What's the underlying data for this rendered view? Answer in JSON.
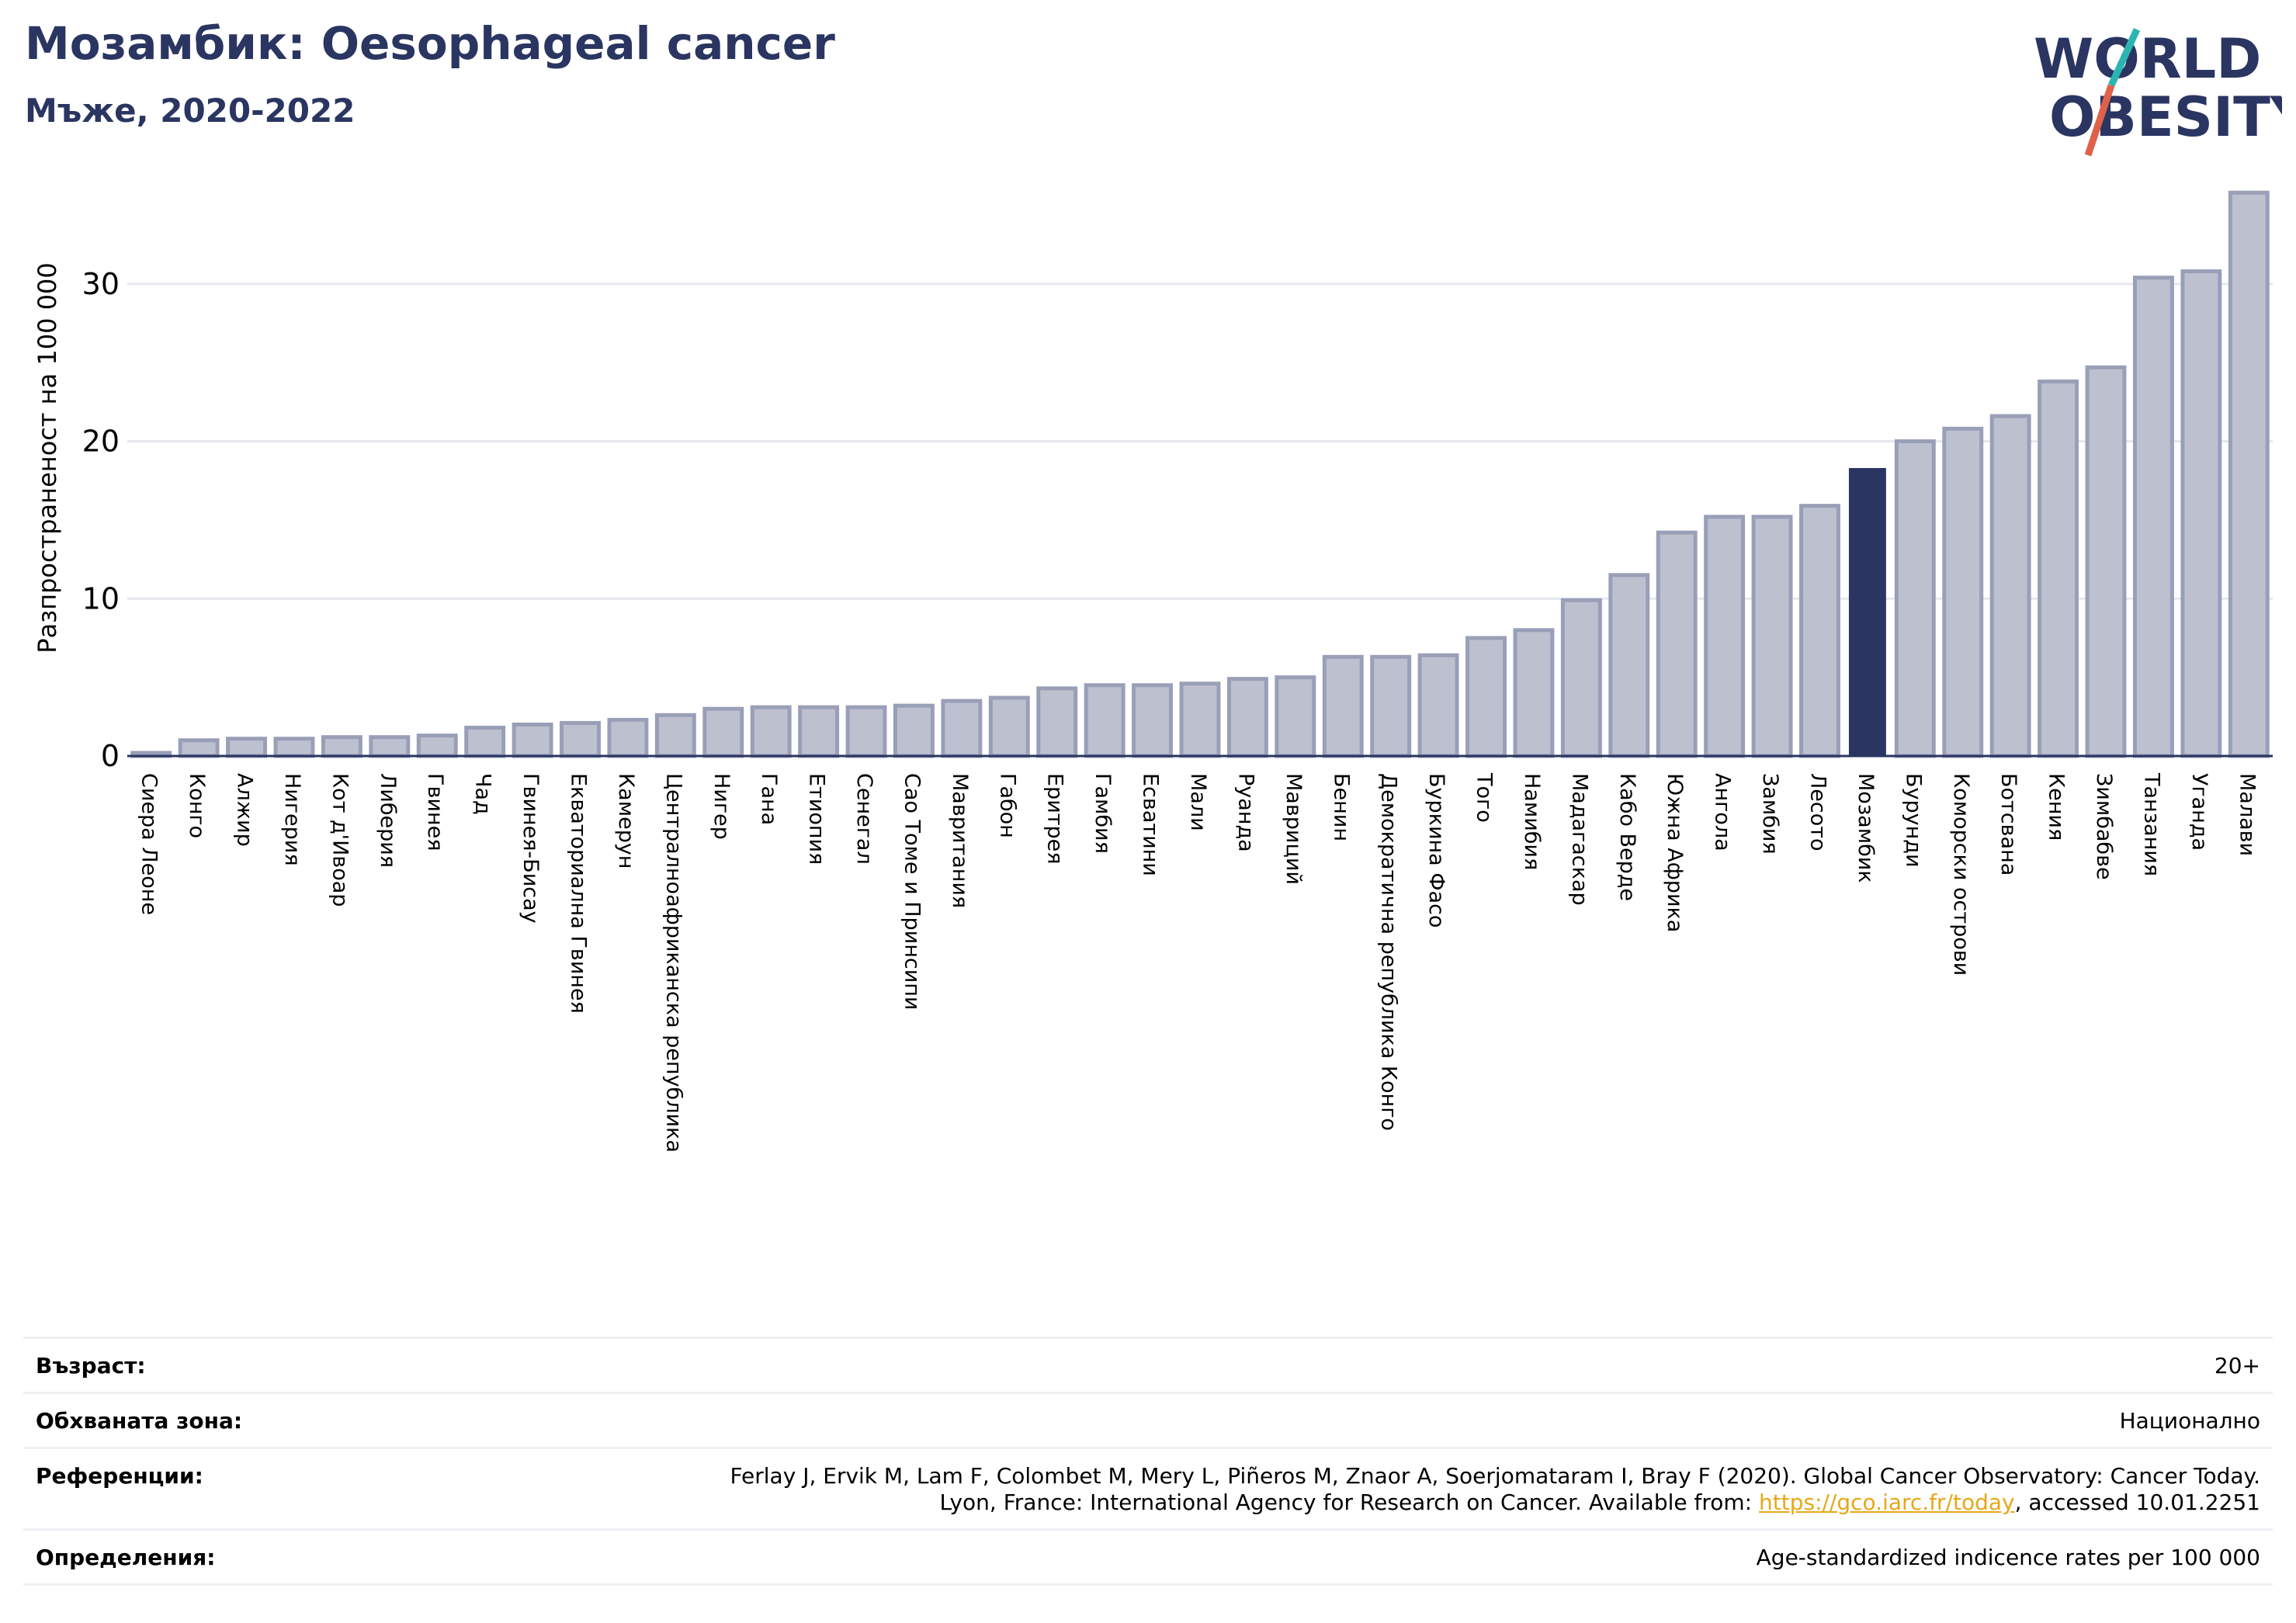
{
  "header": {
    "title": "Мозамбик: Oesophageal cancer",
    "subtitle": "Мъже, 2020-2022"
  },
  "logo": {
    "line1": "WORLD",
    "line2": "OBESITY",
    "colors": {
      "text": "#2a3561",
      "slash_teal": "#2bb5b0",
      "slash_red": "#e0614a"
    }
  },
  "chart_data": {
    "type": "bar",
    "ylabel": "Разпространеност  на 100 000",
    "ylim": [
      0,
      36.5
    ],
    "yticks": [
      0,
      10,
      20,
      30
    ],
    "grid": true,
    "highlight": "Мозамбик",
    "colors": {
      "bar": "#bcc0cf",
      "bar_border": "#9a9fb8",
      "highlight": "#2a3561"
    },
    "categories": [
      "Сиера Леоне",
      "Конго",
      "Алжир",
      "Нигерия",
      "Кот д'Ивоар",
      "Либерия",
      "Гвинея",
      "Чад",
      "Гвинея-Бисау",
      "Екваториална Гвинея",
      "Камерун",
      "Централноафриканска република",
      "Нигер",
      "Гана",
      "Етиопия",
      "Сенегал",
      "Сао Томе и Принсипи",
      "Мавритания",
      "Габон",
      "Еритрея",
      "Гамбия",
      "Есватини",
      "Мали",
      "Руанда",
      "Мавриций",
      "Бенин",
      "Демократична република Конго",
      "Буркина Фасо",
      "Того",
      "Намибия",
      "Мадагаскар",
      "Кабо Верде",
      "Южна Африка",
      "Ангола",
      "Замбия",
      "Лесото",
      "Мозамбик",
      "Бурунди",
      "Коморски острови",
      "Ботсвана",
      "Кения",
      "Зимбабве",
      "Танзания",
      "Уганда",
      "Малави"
    ],
    "values": [
      0.2,
      1.0,
      1.1,
      1.1,
      1.2,
      1.2,
      1.3,
      1.8,
      2.0,
      2.1,
      2.3,
      2.6,
      3.0,
      3.1,
      3.1,
      3.1,
      3.2,
      3.5,
      3.7,
      4.3,
      4.5,
      4.5,
      4.6,
      4.9,
      5.0,
      6.3,
      6.3,
      6.4,
      7.5,
      8.0,
      9.9,
      11.5,
      14.2,
      15.2,
      15.2,
      15.9,
      18.3,
      20.0,
      20.8,
      21.6,
      23.8,
      24.7,
      30.4,
      30.8,
      35.8
    ]
  },
  "info": {
    "age_label": "Възраст:",
    "age_value": "20+",
    "area_label": "Обхваната зона:",
    "area_value": "Национално",
    "ref_label": "Референции:",
    "ref_line1": "Ferlay J, Ervik M, Lam F, Colombet M, Mery L, Piñeros M, Znaor A, Soerjomataram I, Bray F (2020). Global Cancer Observatory: Cancer Today.",
    "ref_line2_pre": "Lyon, France: International Agency for Research on Cancer. Available from: ",
    "ref_link": "https://gco.iarc.fr/today",
    "ref_line2_post": ", accessed 10.01.2251",
    "def_label": "Определения:",
    "def_value": "Age-standardized indicence rates per 100 000"
  }
}
